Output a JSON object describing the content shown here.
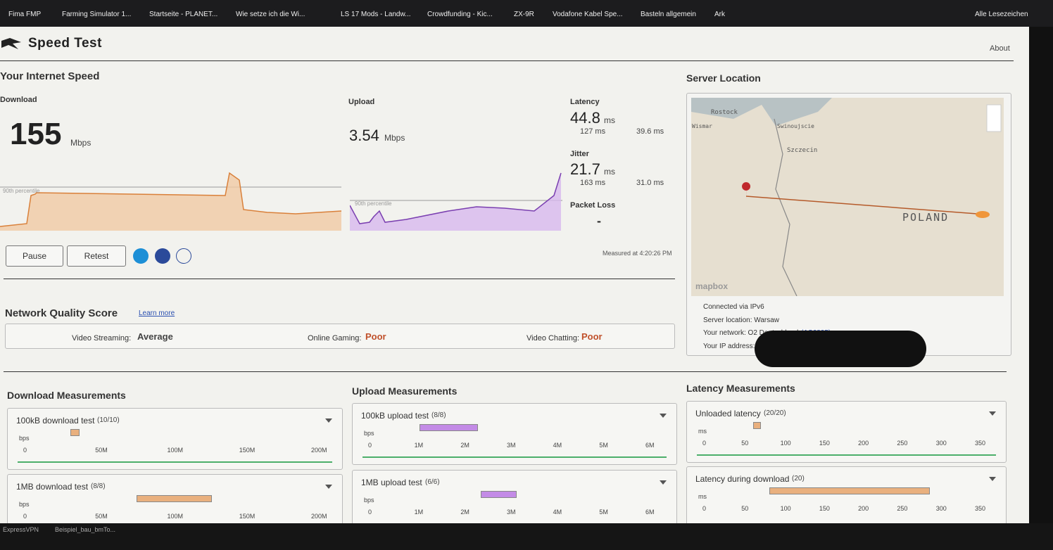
{
  "bookmarks": [
    "Fima FMP",
    "Farming Simulator 1...",
    "Startseite - PLANET...",
    "Wie setze ich die Wi...",
    "LS 17 Mods - Landw...",
    "Crowdfunding - Kic...",
    "ZX-9R",
    "Vodafone Kabel Spe...",
    "Basteln allgemein",
    "Ark"
  ],
  "bookmarks_right": "Alle Lesezeichen",
  "header": {
    "title": "Speed Test",
    "about": "About"
  },
  "speed": {
    "title": "Your Internet Speed",
    "download": {
      "label": "Download",
      "value": "155",
      "unit": "Mbps",
      "percentile": "90th percentile"
    },
    "upload": {
      "label": "Upload",
      "value": "3.54",
      "unit": "Mbps",
      "percentile": "90th percentile"
    },
    "latency": {
      "label": "Latency",
      "value": "44.8",
      "unit": "ms",
      "down": "127 ms",
      "up": "39.6 ms"
    },
    "jitter": {
      "label": "Jitter",
      "value": "21.7",
      "unit": "ms",
      "down": "163 ms",
      "up": "31.0 ms"
    },
    "packet_loss": {
      "label": "Packet Loss",
      "value": "-"
    },
    "buttons": {
      "pause": "Pause",
      "retest": "Retest"
    },
    "measured": "Measured at 4:20:26 PM"
  },
  "quality": {
    "title": "Network Quality Score",
    "learn_more": "Learn more",
    "items": [
      {
        "label": "Video Streaming:",
        "value": "Average"
      },
      {
        "label": "Online Gaming:",
        "value": "Poor"
      },
      {
        "label": "Video Chatting:",
        "value": "Poor"
      }
    ]
  },
  "server": {
    "title": "Server Location",
    "map_labels": [
      "Rostock",
      "Wismar",
      "Swinoujscie",
      "Szczecin",
      "POLAND"
    ],
    "mapbox": "mapbox",
    "info": [
      "Connected via IPv6",
      "Server location: Warsaw",
      "Your network: O2 Deutschland",
      "Your IP address:"
    ],
    "asn": "(AS6805)"
  },
  "measurements": [
    {
      "title": "Download Measurements",
      "cards": [
        {
          "title": "100kB download test",
          "count": "(10/10)",
          "unit": "bps",
          "ticks": [
            "0",
            "50M",
            "100M",
            "150M",
            "200M"
          ]
        },
        {
          "title": "1MB download test",
          "count": "(8/8)",
          "unit": "bps",
          "ticks": [
            "0",
            "50M",
            "100M",
            "150M",
            "200M"
          ]
        }
      ]
    },
    {
      "title": "Upload Measurements",
      "cards": [
        {
          "title": "100kB upload test",
          "count": "(8/8)",
          "unit": "bps",
          "ticks": [
            "0",
            "1M",
            "2M",
            "3M",
            "4M",
            "5M",
            "6M"
          ]
        },
        {
          "title": "1MB upload test",
          "count": "(6/6)",
          "unit": "bps",
          "ticks": [
            "0",
            "1M",
            "2M",
            "3M",
            "4M",
            "5M",
            "6M"
          ]
        }
      ]
    },
    {
      "title": "Latency Measurements",
      "cards": [
        {
          "title": "Unloaded latency",
          "count": "(20/20)",
          "unit": "ms",
          "ticks": [
            "0",
            "50",
            "100",
            "150",
            "200",
            "250",
            "300",
            "350"
          ]
        },
        {
          "title": "Latency during download",
          "count": "(20)",
          "unit": "ms",
          "ticks": [
            "0",
            "50",
            "100",
            "150",
            "200",
            "250",
            "300",
            "350"
          ]
        }
      ]
    }
  ],
  "taskbar": [
    "ExpressVPN",
    "Beispiel_bau_bmTo..."
  ]
}
